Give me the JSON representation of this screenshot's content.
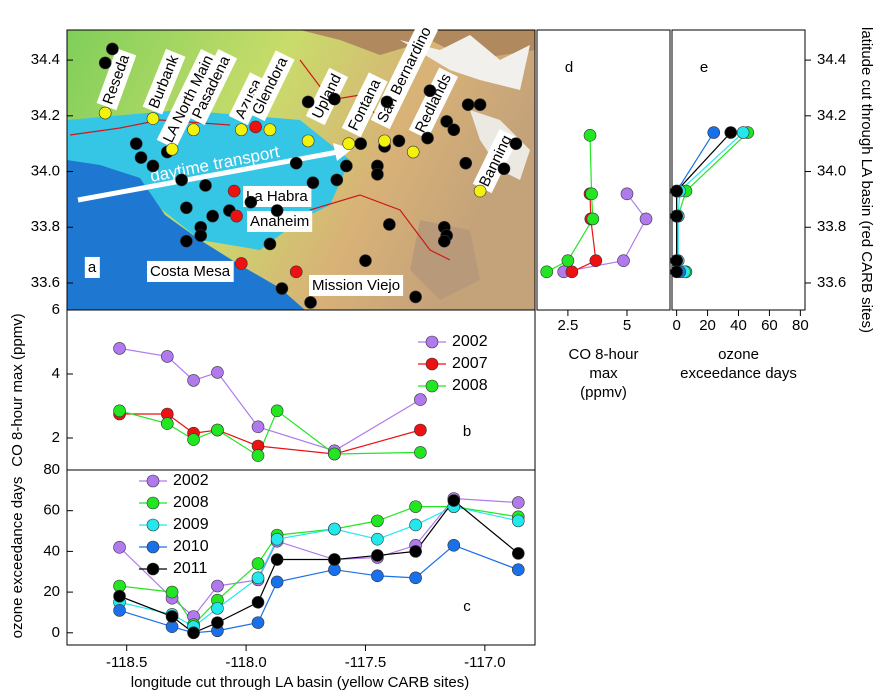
{
  "chart_data": [
    {
      "type": "map",
      "panel_label": "a",
      "xlim": [
        -118.75,
        -116.79
      ],
      "ylim": [
        33.503,
        34.508
      ],
      "yticks": [
        33.6,
        33.8,
        {
          "value": 34,
          "label": "34.0"
        },
        34.2,
        34.4
      ],
      "series": [
        {
          "color": "#000000",
          "x": [
            -118.56,
            -118.59,
            -117.74,
            -117.63,
            -117.41,
            -117.23,
            -117.16,
            -117.13,
            -117.07,
            -117.02,
            -116.87,
            -116.92,
            -117.08,
            -117.24,
            -117.36,
            -117.42,
            -117.45,
            -117.45,
            -117.52,
            -117.58,
            -117.62,
            -117.79,
            -117.72,
            -117.87,
            -117.98,
            -118.07,
            -118.14,
            -118.25,
            -118.19,
            -118.19,
            -118.25,
            -118.46,
            -118.44,
            -118.33,
            -118.39,
            -118.27,
            -118.17,
            -117.9,
            -117.85,
            -117.73,
            -117.29,
            -117.17,
            -117.16,
            -117.17,
            -117.4,
            -117.5
          ],
          "values": [
            34.44,
            34.39,
            34.25,
            34.26,
            34.25,
            34.29,
            34.18,
            34.15,
            34.24,
            34.24,
            34.1,
            34.01,
            34.03,
            34.12,
            34.11,
            34.09,
            34.02,
            33.99,
            34.1,
            34.02,
            33.97,
            34.03,
            33.96,
            33.86,
            33.89,
            33.86,
            33.84,
            33.87,
            33.8,
            33.77,
            33.75,
            34.1,
            34.05,
            34.07,
            34.02,
            33.97,
            33.95,
            33.74,
            33.58,
            33.53,
            33.55,
            33.8,
            33.77,
            33.75,
            33.81,
            33.68
          ]
        },
        {
          "color": "#f2f20a",
          "x": [
            -118.59,
            -118.39,
            -118.31,
            -118.22,
            -118.02,
            -117.9,
            -117.74,
            -117.57,
            -117.42,
            -117.3,
            -117.02
          ],
          "values": [
            34.21,
            34.19,
            34.08,
            34.15,
            34.15,
            34.15,
            34.11,
            34.1,
            34.11,
            34.07,
            33.93
          ]
        },
        {
          "color": "#ee1111",
          "x": [
            -117.96,
            -118.05,
            -118.04,
            -118.02,
            -117.79
          ],
          "values": [
            34.16,
            33.93,
            33.84,
            33.67,
            33.64
          ]
        }
      ],
      "site_labels": [
        "Reseda",
        "Burbank",
        "LA North Main",
        "Pasadena",
        "Azusa",
        "Glendora",
        "Upland",
        "Fontana",
        "San Bernardino",
        "Redlands",
        "Banning",
        "La Habra",
        "Anaheim",
        "Costa Mesa",
        "Mission Viejo"
      ],
      "annotation": "daytime transport"
    },
    {
      "type": "line",
      "panel_label": "b",
      "ylabel": "CO 8-hour max (ppmv)",
      "xlim": [
        -118.75,
        -116.79
      ],
      "ylim": [
        1,
        6
      ],
      "yticks": [
        2,
        4,
        6
      ],
      "legend": "upper right",
      "series": [
        {
          "name": "2002",
          "color": "#b07aee",
          "x": [
            -118.53,
            -118.33,
            -118.22,
            -118.12,
            -117.95,
            -117.63,
            -117.27
          ],
          "values": [
            4.8,
            4.55,
            3.8,
            4.05,
            2.35,
            1.6,
            3.2
          ]
        },
        {
          "name": "2007",
          "color": "#ee1111",
          "x": [
            -118.53,
            -118.33,
            -118.22,
            -118.12,
            -117.95,
            -117.63,
            -117.27
          ],
          "values": [
            2.75,
            2.75,
            2.15,
            2.25,
            1.75,
            1.5,
            2.25
          ]
        },
        {
          "name": "2008",
          "color": "#22e622",
          "x": [
            -118.53,
            -118.33,
            -118.22,
            -118.12,
            -117.95,
            -117.87,
            -117.63,
            -117.27
          ],
          "values": [
            2.85,
            2.45,
            1.95,
            2.25,
            1.45,
            2.85,
            1.5,
            1.55
          ]
        }
      ]
    },
    {
      "type": "line",
      "panel_label": "c",
      "ylabel": "ozone exceedance days",
      "xlabel": "longitude cut through LA basin (yellow CARB sites)",
      "xlim": [
        -118.75,
        -116.79
      ],
      "ylim": [
        -6,
        80
      ],
      "yticks": [
        0,
        20,
        40,
        60,
        80
      ],
      "xticks": [
        -118.5,
        {
          "value": -118,
          "label": "-118.0"
        },
        -117.5,
        {
          "value": -117,
          "label": "-117.0"
        }
      ],
      "legend": "upper left",
      "series": [
        {
          "name": "2002",
          "color": "#b07aee",
          "x": [
            -118.53,
            -118.31,
            -118.22,
            -118.12,
            -117.95,
            -117.87,
            -117.63,
            -117.45,
            -117.29,
            -117.13,
            -116.86
          ],
          "values": [
            42,
            17,
            8,
            23,
            26,
            45,
            36,
            37,
            43,
            66,
            64
          ]
        },
        {
          "name": "2008",
          "color": "#22e622",
          "x": [
            -118.53,
            -118.31,
            -118.22,
            -118.12,
            -117.95,
            -117.87,
            -117.63,
            -117.45,
            -117.29,
            -117.13,
            -116.86
          ],
          "values": [
            23,
            20,
            4,
            16,
            34,
            48,
            51,
            55,
            62,
            62,
            57
          ]
        },
        {
          "name": "2009",
          "color": "#22e8ee",
          "x": [
            -118.53,
            -118.31,
            -118.22,
            -118.12,
            -117.95,
            -117.87,
            -117.63,
            -117.45,
            -117.29,
            -117.13,
            -116.86
          ],
          "values": [
            15,
            9,
            3,
            12,
            27,
            46,
            51,
            46,
            53,
            62,
            55
          ]
        },
        {
          "name": "2010",
          "color": "#1a70e8",
          "x": [
            -118.53,
            -118.31,
            -118.22,
            -118.12,
            -117.95,
            -117.87,
            -117.63,
            -117.45,
            -117.29,
            -117.13,
            -116.86
          ],
          "values": [
            11,
            3,
            0,
            1,
            5,
            25,
            31,
            28,
            27,
            43,
            31
          ]
        },
        {
          "name": "2011",
          "color": "#000000",
          "x": [
            -118.53,
            -118.31,
            -118.22,
            -118.12,
            -117.95,
            -117.87,
            -117.63,
            -117.45,
            -117.29,
            -117.13,
            -116.86
          ],
          "values": [
            18,
            8,
            0,
            5,
            15,
            36,
            36,
            38,
            40,
            65,
            39
          ]
        }
      ]
    },
    {
      "type": "profile",
      "panel_label": "d",
      "xlabel": [
        "CO 8-hour",
        "max",
        "(ppmv)"
      ],
      "xlim": [
        1.74,
        8.28
      ],
      "log_x": true,
      "xticks": [
        2.5,
        5
      ],
      "ylim": [
        33.503,
        34.508
      ],
      "series": [
        {
          "color": "#b07aee",
          "values": [
            5.0,
            6.25,
            4.8,
            2.38
          ],
          "lat": [
            33.92,
            33.83,
            33.68,
            33.64
          ]
        },
        {
          "color": "#ee1111",
          "values": [
            3.24,
            3.27,
            3.47,
            2.62
          ],
          "lat": [
            33.92,
            33.83,
            33.68,
            33.64
          ]
        },
        {
          "color": "#22e622",
          "values": [
            3.24,
            3.3,
            3.35,
            2.5,
            1.95
          ],
          "lat": [
            34.13,
            33.92,
            33.83,
            33.68,
            33.64
          ]
        }
      ]
    },
    {
      "type": "profile",
      "panel_label": "e",
      "xlabel": [
        "ozone",
        "exceedance days"
      ],
      "ylabel": "latitude cut through LA basin (red CARB sites)",
      "xlim": [
        -3,
        83
      ],
      "xticks": [
        0,
        20,
        40,
        60,
        80
      ],
      "ylim": [
        33.503,
        34.508
      ],
      "yticks": [
        33.6,
        33.8,
        {
          "value": 34,
          "label": "34.0"
        },
        34.2,
        34.4
      ],
      "series": [
        {
          "color": "#22e622",
          "values": [
            46,
            6,
            1,
            0,
            6
          ],
          "lat": [
            34.14,
            33.93,
            33.84,
            33.68,
            33.64
          ]
        },
        {
          "color": "#22e8ee",
          "values": [
            43,
            2,
            1,
            1,
            5
          ],
          "lat": [
            34.14,
            33.93,
            33.84,
            33.68,
            33.64
          ]
        },
        {
          "color": "#1a70e8",
          "values": [
            24,
            0,
            0,
            0,
            2
          ],
          "lat": [
            34.14,
            33.93,
            33.84,
            33.68,
            33.64
          ]
        },
        {
          "color": "#000000",
          "values": [
            35,
            0,
            0,
            0,
            0
          ],
          "lat": [
            34.14,
            33.93,
            33.84,
            33.68,
            33.64
          ]
        }
      ]
    }
  ]
}
